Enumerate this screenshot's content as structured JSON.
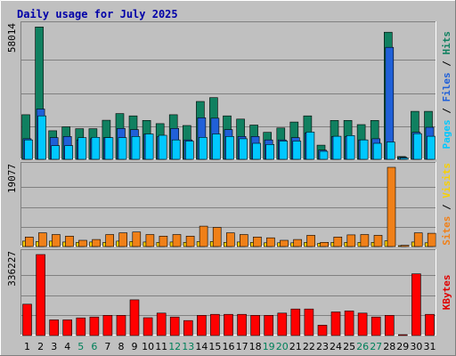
{
  "chart_data": {
    "type": "bar",
    "title": "Daily usage for July 2025",
    "categories": [
      "1",
      "2",
      "3",
      "4",
      "5",
      "6",
      "7",
      "8",
      "9",
      "10",
      "11",
      "12",
      "13",
      "14",
      "15",
      "16",
      "17",
      "18",
      "19",
      "20",
      "21",
      "22",
      "23",
      "24",
      "25",
      "26",
      "27",
      "28",
      "29",
      "30",
      "31"
    ],
    "weekend_days": [
      "5",
      "6",
      "12",
      "13",
      "19",
      "20",
      "26",
      "27"
    ],
    "grid": true,
    "legend": "right side, vertical",
    "panels": [
      {
        "ymax": 58014,
        "ymax_label": "58014",
        "labels": [
          {
            "text": "Pages",
            "color": "#00c8ff"
          },
          {
            "text": " / ",
            "color": "#000000"
          },
          {
            "text": "Files",
            "color": "#2060d8"
          },
          {
            "text": " / ",
            "color": "#000000"
          },
          {
            "text": "Hits",
            "color": "#108060"
          }
        ],
        "series": [
          {
            "name": "Hits",
            "color": "#108060",
            "values": [
              19500,
              57900,
              12500,
              14200,
              13400,
              13400,
              17100,
              20000,
              19000,
              17000,
              15600,
              19500,
              14800,
              25300,
              27000,
              19000,
              17600,
              15000,
              11800,
              13700,
              16300,
              19000,
              6200,
              17000,
              17000,
              15200,
              17000,
              55600,
              1200,
              21000,
              21000
            ]
          },
          {
            "name": "Files",
            "color": "#2060d8",
            "values": [
              9000,
              22000,
              9500,
              10000,
              8500,
              9000,
              9500,
              13500,
              13000,
              11000,
              10000,
              13500,
              8500,
              18200,
              18000,
              13000,
              10000,
              10000,
              8500,
              8500,
              9500,
              11500,
              4000,
              10000,
              10000,
              8500,
              9000,
              49000,
              900,
              11800,
              14000
            ]
          },
          {
            "name": "Pages",
            "color": "#00c8ff",
            "values": [
              8500,
              19000,
              6000,
              6000,
              9500,
              9600,
              9500,
              9500,
              10000,
              11100,
              10500,
              8500,
              8000,
              9600,
              11100,
              10000,
              9000,
              7000,
              6500,
              8000,
              8000,
              11900,
              3500,
              10100,
              10400,
              8500,
              7000,
              7600,
              600,
              11200,
              10100
            ]
          }
        ]
      },
      {
        "ymax": 19077,
        "ymax_label": "19077",
        "labels": [
          {
            "text": "Sites",
            "color": "#f08018"
          },
          {
            "text": " / ",
            "color": "#000000"
          },
          {
            "text": "Visits",
            "color": "#f8d000"
          }
        ],
        "series": [
          {
            "name": "Visits",
            "color": "#f8d000",
            "values": [
              1300,
              1200,
              1300,
              1100,
              1000,
              1100,
              1000,
              1300,
              1200,
              1100,
              1000,
              1100,
              1000,
              1200,
              1200,
              1000,
              1100,
              1000,
              900,
              900,
              900,
              1000,
              800,
              1000,
              1000,
              1000,
              1000,
              1400,
              200,
              1100,
              900
            ]
          },
          {
            "name": "Sites",
            "color": "#f08018",
            "values": [
              2300,
              3300,
              2900,
              2500,
              1500,
              1700,
              2900,
              3300,
              3500,
              2900,
              2500,
              2900,
              2500,
              4900,
              4600,
              3300,
              2900,
              2300,
              2100,
              1500,
              1700,
              2700,
              1000,
              2300,
              2800,
              2900,
              2700,
              19077,
              300,
              3300,
              3200
            ]
          }
        ]
      },
      {
        "ymax": 336227,
        "ymax_label": "336227",
        "labels": [
          {
            "text": "KBytes",
            "color": "#e00000"
          }
        ],
        "series": [
          {
            "name": "KBytes",
            "color": "#ff0000",
            "values": [
              130000,
              336227,
              65000,
              65000,
              73000,
              77000,
              84000,
              84000,
              148000,
              74000,
              93000,
              77000,
              62000,
              84000,
              88000,
              88000,
              88000,
              84000,
              84000,
              93000,
              110000,
              110000,
              43000,
              98000,
              102000,
              93000,
              77000,
              84000,
              3000,
              256000,
              88000
            ]
          }
        ]
      }
    ]
  }
}
